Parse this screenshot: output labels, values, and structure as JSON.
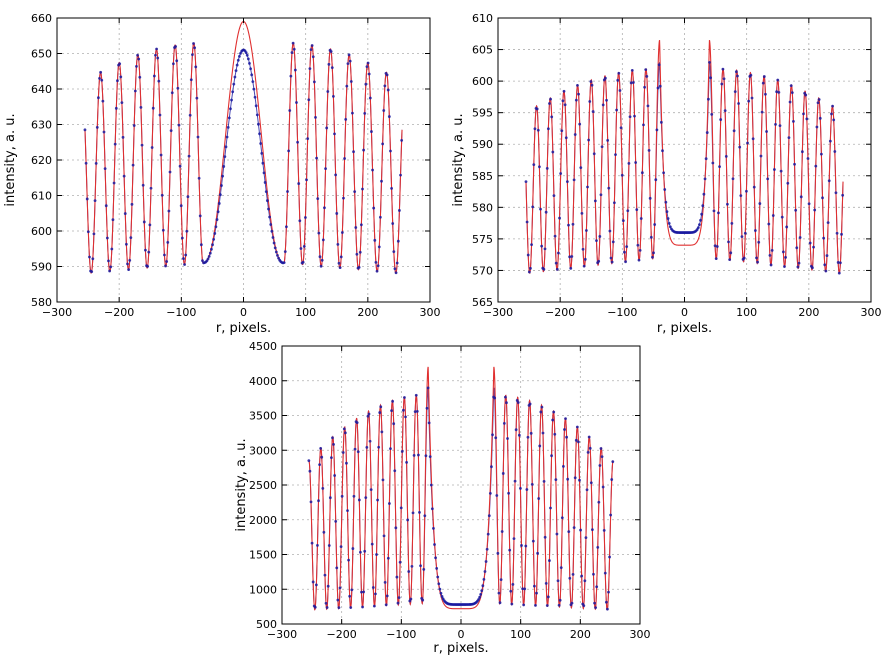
{
  "chart_data": [
    {
      "id": "top-left",
      "type": "line",
      "title": "",
      "xlabel": "r, pixels.",
      "ylabel": "intensity, a. u.",
      "xlim": [
        -300,
        300
      ],
      "ylim": [
        580,
        660
      ],
      "xticks": [
        -300,
        -200,
        -100,
        0,
        100,
        200,
        300
      ],
      "yticks": [
        580,
        590,
        600,
        610,
        620,
        630,
        640,
        650,
        660
      ],
      "xtick_labels": [
        "−300",
        "−200",
        "−100",
        "0",
        "100",
        "200",
        "300"
      ],
      "ytick_labels": [
        "580",
        "590",
        "600",
        "610",
        "620",
        "630",
        "640",
        "650",
        "660"
      ],
      "grid": true,
      "pattern": "central-peak",
      "r_range": [
        -255,
        255
      ],
      "central_width": 65,
      "ring_spacing": 30,
      "fit_center_peak": 659,
      "data_center_peak": 651,
      "peak_near_center": 653,
      "peak_edge": 642,
      "trough_inner": 591,
      "trough_edge": 588,
      "series": [
        {
          "kind": "fit-line",
          "color": "#e03030"
        },
        {
          "kind": "measured-points",
          "color": "#1a1aa0"
        }
      ]
    },
    {
      "id": "top-right",
      "type": "line",
      "title": "",
      "xlabel": "r, pixels.",
      "ylabel": "intensity, a. u.",
      "xlim": [
        -300,
        300
      ],
      "ylim": [
        565,
        610
      ],
      "xticks": [
        -300,
        -200,
        -100,
        0,
        100,
        200,
        300
      ],
      "yticks": [
        565,
        570,
        575,
        580,
        585,
        590,
        595,
        600,
        605,
        610
      ],
      "xtick_labels": [
        "−300",
        "−200",
        "−100",
        "0",
        "100",
        "200",
        "300"
      ],
      "ytick_labels": [
        "565",
        "570",
        "575",
        "580",
        "585",
        "590",
        "595",
        "600",
        "605",
        "610"
      ],
      "grid": true,
      "pattern": "central-dip",
      "r_range": [
        -255,
        255
      ],
      "first_peak_r": 40,
      "ring_spacing": 22,
      "fit_first_peak": 606.5,
      "data_first_peak": 603,
      "fit_center": 574,
      "data_center": 576,
      "peak_near_center": 602,
      "peak_edge": 595,
      "trough_inner": 572,
      "trough_edge": 569.5,
      "series": [
        {
          "kind": "fit-line",
          "color": "#e03030"
        },
        {
          "kind": "measured-points",
          "color": "#1a1aa0"
        }
      ]
    },
    {
      "id": "bottom",
      "type": "line",
      "title": "",
      "xlabel": "r, pixels.",
      "ylabel": "intensity, a. u.",
      "xlim": [
        -300,
        300
      ],
      "ylim": [
        500,
        4500
      ],
      "xticks": [
        -300,
        -200,
        -100,
        0,
        100,
        200,
        300
      ],
      "yticks": [
        500,
        1000,
        1500,
        2000,
        2500,
        3000,
        3500,
        4000,
        4500
      ],
      "xtick_labels": [
        "−300",
        "−200",
        "−100",
        "0",
        "100",
        "200",
        "300"
      ],
      "ytick_labels": [
        "500",
        "1000",
        "1500",
        "2000",
        "2500",
        "3000",
        "3500",
        "4000",
        "4500"
      ],
      "grid": true,
      "pattern": "central-dip",
      "r_range": [
        -255,
        255
      ],
      "first_peak_r": 55,
      "ring_spacing": 20,
      "fit_first_peak": 4200,
      "data_first_peak": 3900,
      "fit_center": 720,
      "data_center": 780,
      "peak_near_center": 3800,
      "peak_edge": 2850,
      "trough_inner": 800,
      "trough_edge": 700,
      "series": [
        {
          "kind": "fit-line",
          "color": "#e03030"
        },
        {
          "kind": "measured-points",
          "color": "#1a1aa0"
        }
      ]
    }
  ]
}
